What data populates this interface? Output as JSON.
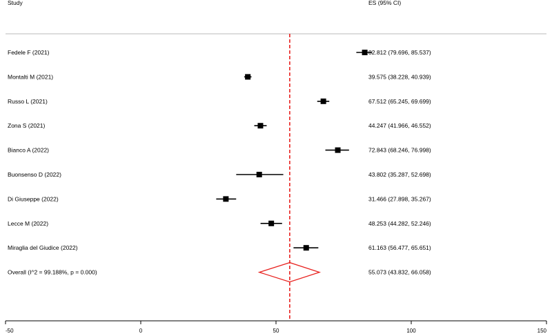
{
  "chart_data": {
    "type": "forest",
    "headers": {
      "study": "Study",
      "estimate": "ES (95% CI)"
    },
    "studies": [
      {
        "label": "Fedele F (2021)",
        "es": 82.812,
        "lo": 79.696,
        "hi": 85.537,
        "text": "82.812 (79.696, 85.537)"
      },
      {
        "label": "Montalti M (2021)",
        "es": 39.575,
        "lo": 38.228,
        "hi": 40.939,
        "text": "39.575 (38.228, 40.939)"
      },
      {
        "label": "Russo L (2021)",
        "es": 67.512,
        "lo": 65.245,
        "hi": 69.699,
        "text": "67.512 (65.245, 69.699)"
      },
      {
        "label": "Zona S (2021)",
        "es": 44.247,
        "lo": 41.966,
        "hi": 46.552,
        "text": "44.247 (41.966, 46.552)"
      },
      {
        "label": "Bianco A (2022)",
        "es": 72.843,
        "lo": 68.246,
        "hi": 76.998,
        "text": "72.843 (68.246, 76.998)"
      },
      {
        "label": "Buonsenso D (2022)",
        "es": 43.802,
        "lo": 35.287,
        "hi": 52.698,
        "text": "43.802 (35.287, 52.698)"
      },
      {
        "label": "Di Giuseppe (2022)",
        "es": 31.466,
        "lo": 27.898,
        "hi": 35.267,
        "text": "31.466 (27.898, 35.267)"
      },
      {
        "label": "Lecce M (2022)",
        "es": 48.253,
        "lo": 44.282,
        "hi": 52.246,
        "text": "48.253 (44.282, 52.246)"
      },
      {
        "label": "Miraglia del Giudice (2022)",
        "es": 61.163,
        "lo": 56.477,
        "hi": 65.651,
        "text": "61.163 (56.477, 65.651)"
      }
    ],
    "overall": {
      "label": "Overall  (I^2 = 99.188%, p = 0.000)",
      "es": 55.073,
      "lo": 43.832,
      "hi": 66.058,
      "text": "55.073 (43.832, 66.058)"
    },
    "x_ticks": [
      -50,
      0,
      50,
      100,
      150
    ],
    "xlim": [
      -50,
      150
    ],
    "reference_line": 55.073,
    "colors": {
      "overall": "#e8201d",
      "reference_line": "#e8201d",
      "marker": "#000000"
    }
  }
}
